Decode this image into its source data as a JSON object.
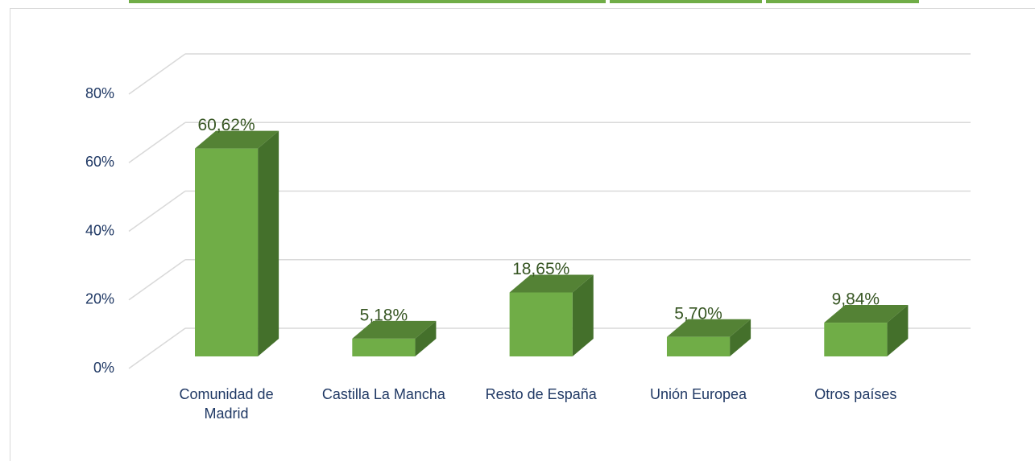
{
  "chart_data": {
    "type": "bar",
    "categories": [
      "Comunidad de Madrid",
      "Castilla La Mancha",
      "Resto de España",
      "Unión Europea",
      "Otros países"
    ],
    "values": [
      60.62,
      5.18,
      18.65,
      5.7,
      9.84
    ],
    "value_labels": [
      "60,62%",
      "5,18%",
      "18,65%",
      "5,70%",
      "9,84%"
    ],
    "color": "#70ad47",
    "ylim": [
      0,
      80
    ],
    "yticks": [
      {
        "value": 0,
        "label": "0%"
      },
      {
        "value": 20,
        "label": "20%"
      },
      {
        "value": 40,
        "label": "40%"
      },
      {
        "value": 60,
        "label": "60%"
      },
      {
        "value": 80,
        "label": "80%"
      }
    ],
    "grid": true
  }
}
